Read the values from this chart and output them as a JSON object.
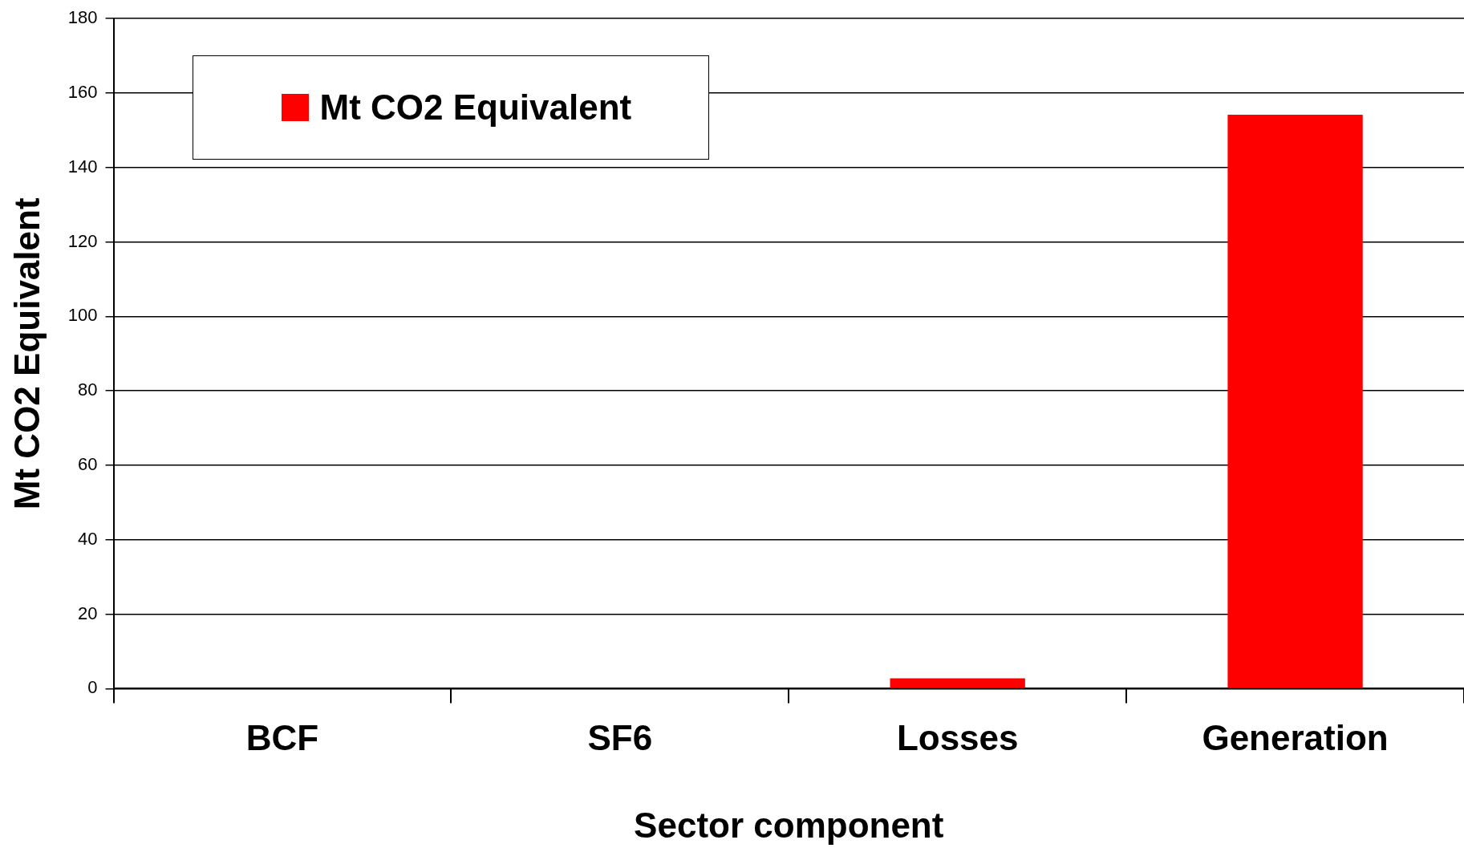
{
  "chart_data": {
    "type": "bar",
    "xlabel": "Sector component",
    "ylabel": "Mt CO2 Equivalent",
    "categories": [
      "BCF",
      "SF6",
      "Losses",
      "Generation"
    ],
    "series": [
      {
        "name": "Mt CO2 Equivalent",
        "color": "#ff0000",
        "values": [
          0,
          0,
          2.8,
          154.2
        ]
      }
    ],
    "ylim": [
      0,
      180
    ],
    "yticks": [
      0,
      20,
      40,
      60,
      80,
      100,
      120,
      140,
      160,
      180
    ],
    "grid": "y",
    "legend": "top left"
  }
}
